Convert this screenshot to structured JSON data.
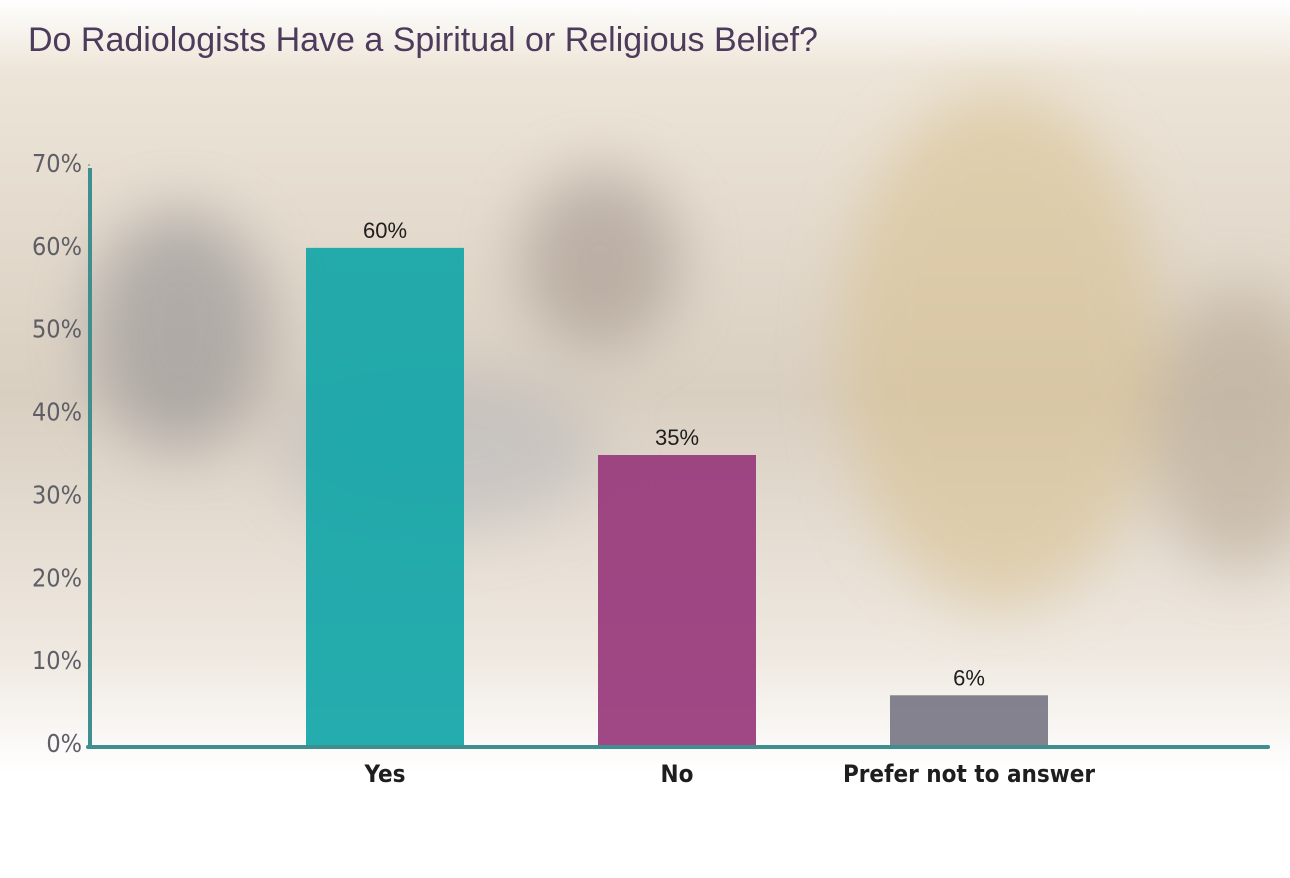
{
  "chart_data": {
    "type": "bar",
    "title": "Do Radiologists Have a Spiritual or Religious Belief?",
    "categories": [
      "Yes",
      "No",
      "Prefer not to answer"
    ],
    "values": [
      60,
      35,
      6
    ],
    "value_labels": [
      "60%",
      "35%",
      "6%"
    ],
    "colors": [
      "#14a6a8",
      "#983a7c",
      "#7b7986"
    ],
    "ylim": [
      0,
      70
    ],
    "yticks": [
      {
        "value": 0,
        "label": "0%"
      },
      {
        "value": 10,
        "label": "10%"
      },
      {
        "value": 20,
        "label": "20%"
      },
      {
        "value": 30,
        "label": "30%"
      },
      {
        "value": 40,
        "label": "40%"
      },
      {
        "value": 50,
        "label": "50%"
      },
      {
        "value": 60,
        "label": "60%"
      },
      {
        "value": 70,
        "label": "70%"
      }
    ],
    "grid": false
  }
}
